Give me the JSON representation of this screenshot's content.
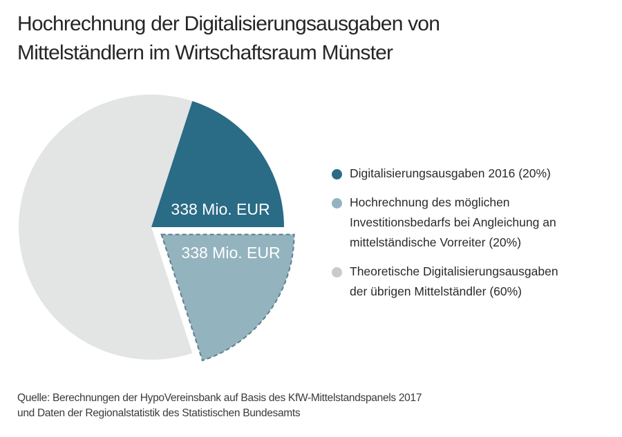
{
  "chart_data": {
    "type": "pie",
    "title": "Hochrechnung der Digitalisierungsausgaben von Mittelständlern im Wirtschaftsraum Münster",
    "title_lines": [
      "Hochrechnung der Digitalisierungsausgaben von",
      "Mittelständlern im Wirtschaftsraum Münster"
    ],
    "slices": [
      {
        "name": "Digitalisierungsausgaben 2016 (20%)",
        "legend_lines": [
          "Digitalisierungsausgaben 2016 (20%)"
        ],
        "value": 20,
        "label": "338 Mio. EUR",
        "color": "#2a6b85",
        "exploded": false,
        "dashed": false
      },
      {
        "name": "Hochrechnung des möglichen Investitionsbedarfs bei Angleichung an mittelständische Vorreiter (20%)",
        "legend_lines": [
          "Hochrechnung des möglichen",
          "Investitionsbedarfs bei Angleichung an",
          "mittelständische Vorreiter (20%)"
        ],
        "value": 20,
        "label": "338 Mio. EUR",
        "color": "#93b3bf",
        "exploded": true,
        "dashed": true
      },
      {
        "name": "Theoretische Digitalisierungsausgaben der übrigen Mittelständler (60%)",
        "legend_lines": [
          "Theoretische Digitalisierungsausgaben",
          "der übrigen Mittelständler (60%)"
        ],
        "value": 60,
        "label": "",
        "color": "#e3e4e4",
        "exploded": false,
        "dashed": false
      }
    ],
    "legend_position": "right",
    "legend_colors": [
      "#2a6b85",
      "#93b3bf",
      "#c9cbcb"
    ]
  },
  "source": {
    "lines": [
      "Quelle: Berechnungen der HypoVereinsbank auf Basis des KfW-Mittelstandspanels 2017",
      "und Daten der Regionalstatistik des Statistischen Bundesamts"
    ]
  }
}
